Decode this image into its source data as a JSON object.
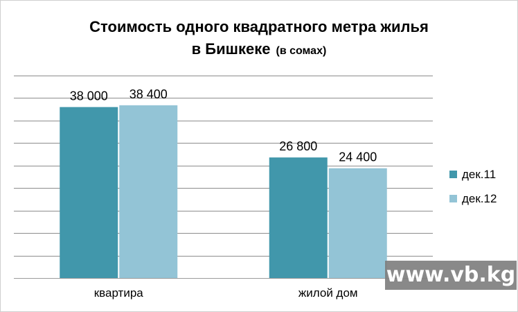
{
  "chart_data": {
    "type": "bar",
    "title_line1": "Стоимость одного квадратного метра жилья",
    "title_line2_main": "в Бишкеке",
    "title_line2_unit": "(в сомах)",
    "categories": [
      "квартира",
      "жилой дом"
    ],
    "series": [
      {
        "name": "дек.11",
        "values": [
          38000,
          26800
        ],
        "labels": [
          "38 000",
          "26 800"
        ],
        "color": "#4197ab"
      },
      {
        "name": "дек.12",
        "values": [
          38400,
          24400
        ],
        "labels": [
          "38 400",
          "24 400"
        ],
        "color": "#93c4d6"
      }
    ],
    "ylim": [
      0,
      45000
    ],
    "y_major_step": 5000,
    "grid": true,
    "legend_position": "right",
    "xlabel": "",
    "ylabel": ""
  },
  "watermark": {
    "text": "www.vb.kg"
  }
}
